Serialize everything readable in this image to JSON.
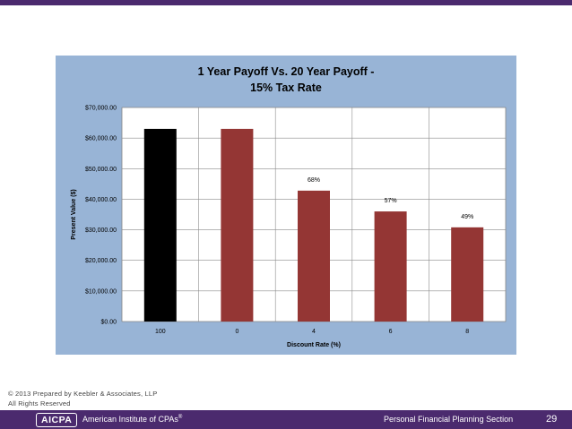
{
  "chart_data": {
    "type": "bar",
    "title_lines": [
      "1 Year Payoff Vs. 20 Year Payoff  -",
      "15% Tax Rate"
    ],
    "xlabel": "Discount Rate (%)",
    "ylabel": "Present Value ($)",
    "ylim": [
      0,
      70000
    ],
    "yticks": [
      "$0.00",
      "$10,000.00",
      "$20,000.00",
      "$30,000.00",
      "$40,000.00",
      "$50,000.00",
      "$60,000.00",
      "$70,000.00"
    ],
    "ytick_values": [
      0,
      10000,
      20000,
      30000,
      40000,
      50000,
      60000,
      70000
    ],
    "categories": [
      "100",
      "0",
      "4",
      "6",
      "8"
    ],
    "values": [
      63000,
      63000,
      42800,
      36000,
      30800
    ],
    "data_labels": [
      "",
      "",
      "68%",
      "57%",
      "49%"
    ],
    "bar_colors": [
      "#000000",
      "#943634",
      "#943634",
      "#943634",
      "#943634"
    ],
    "grid": true,
    "legend": "none",
    "background": "#98b4d6",
    "plot_background": "#ffffff"
  },
  "footer": {
    "copyright_line1": "© 2013 Prepared by Keebler & Associates, LLP",
    "copyright_line2": "All Rights Reserved",
    "logo_text": "AICPA",
    "institute": "American Institute of CPAs",
    "institute_mark": "®",
    "section": "Personal Financial Planning Section",
    "page": "29"
  },
  "colors": {
    "brand_bar": "#4b2a6e"
  }
}
